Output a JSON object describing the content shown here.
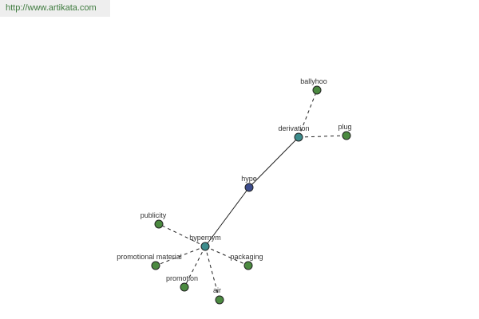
{
  "header": {
    "url": "http://www.artikata.com"
  },
  "nodes": [
    {
      "label": "hype"
    },
    {
      "label": "derivation"
    },
    {
      "label": "ballyhoo"
    },
    {
      "label": "plug"
    },
    {
      "label": "hypernym"
    },
    {
      "label": "publicity"
    },
    {
      "label": "promotional material"
    },
    {
      "label": "packaging"
    },
    {
      "label": "promotion"
    },
    {
      "label": "air"
    }
  ]
}
